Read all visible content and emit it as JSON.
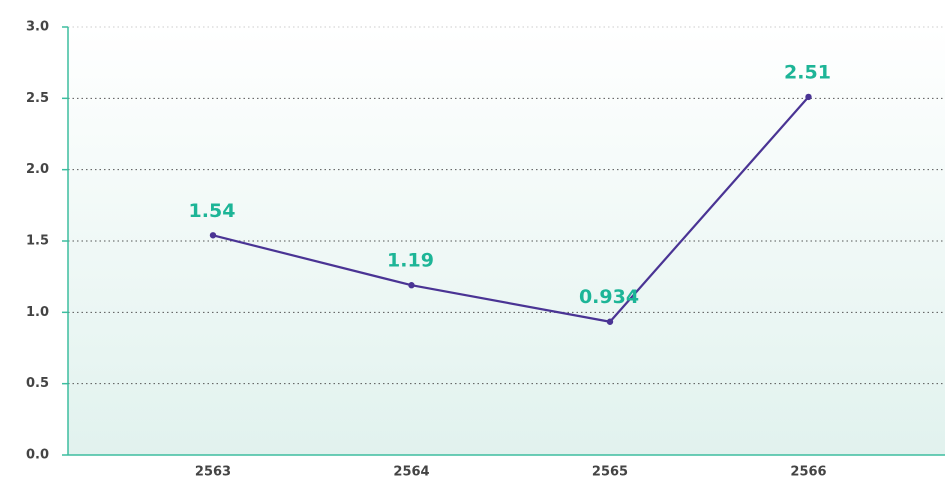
{
  "chart_data": {
    "type": "line",
    "categories": [
      "2563",
      "2564",
      "2565",
      "2566"
    ],
    "series": [
      {
        "name": null,
        "color": "#4a3494",
        "values": [
          1.54,
          1.19,
          0.934,
          2.51
        ]
      }
    ],
    "ylim": [
      0,
      3
    ],
    "yticks": [
      {
        "value": 0,
        "label": "0.0"
      },
      {
        "value": 0.5,
        "label": "0.5"
      },
      {
        "value": 1,
        "label": "1.0"
      },
      {
        "value": 1.5,
        "label": "1.5"
      },
      {
        "value": 2,
        "label": "2.0"
      },
      {
        "value": 2.5,
        "label": "2.5"
      },
      {
        "value": 3,
        "label": "3.0"
      }
    ],
    "grid": true,
    "axis_color": "#3dbd9f",
    "label_color": "#1db597"
  }
}
